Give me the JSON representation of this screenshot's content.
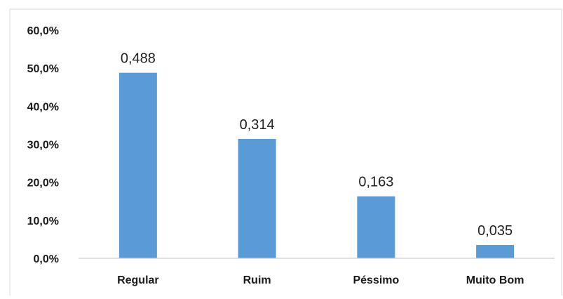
{
  "chart_data": {
    "type": "bar",
    "categories": [
      "Regular",
      "Ruim",
      "Péssimo",
      "Muito Bom"
    ],
    "values": [
      0.488,
      0.314,
      0.163,
      0.035
    ],
    "data_labels": [
      "0,488",
      "0,314",
      "0,163",
      "0,035"
    ],
    "y_ticks": [
      0,
      0.1,
      0.2,
      0.3,
      0.4,
      0.5,
      0.6
    ],
    "y_tick_labels": [
      "0,0%",
      "10,0%",
      "20,0%",
      "30,0%",
      "40,0%",
      "50,0%",
      "60,0%"
    ],
    "ylim": [
      0,
      0.6
    ],
    "title": "",
    "xlabel": "",
    "ylabel": "",
    "grid": false,
    "legend": "none",
    "colors": {
      "bar": "#5b9bd5",
      "axis": "#d0d0d0",
      "frame": "#d9d9d9"
    }
  }
}
